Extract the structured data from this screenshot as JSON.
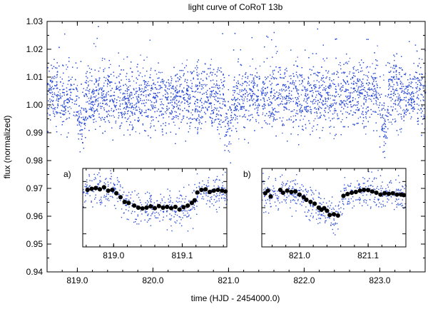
{
  "chart_data": {
    "type": "scatter",
    "title": "light curve of CoRoT 13b",
    "xlabel": "time (HJD - 2454000.0)",
    "ylabel": "flux (normalized)",
    "xlim": [
      818.6,
      823.6
    ],
    "ylim": [
      0.94,
      1.03
    ],
    "xticks": [
      "819.0",
      "820.0",
      "821.0",
      "822.0",
      "823.0"
    ],
    "yticks": [
      "0.94",
      "0.95",
      "0.96",
      "0.97",
      "0.98",
      "0.99",
      "1.00",
      "1.01",
      "1.02",
      "1.03"
    ],
    "baseline_flux": 1.003,
    "transit_depth": 0.01,
    "transit_centers": [
      819.05,
      821.0,
      823.05
    ],
    "main_series_color": "#2f4fd8",
    "binned_color": "#000000",
    "insets": [
      {
        "label": "a)",
        "xlim": [
          818.955,
          819.165
        ],
        "ylim": [
          0.945,
          0.975
        ],
        "xticks": [
          "819.0",
          "819.1"
        ],
        "binned": [
          [
            818.962,
            0.9668
          ],
          [
            818.968,
            0.9672
          ],
          [
            818.974,
            0.9675
          ],
          [
            818.98,
            0.967
          ],
          [
            818.986,
            0.9678
          ],
          [
            818.992,
            0.9665
          ],
          [
            818.998,
            0.9668
          ],
          [
            819.004,
            0.9655
          ],
          [
            819.01,
            0.964
          ],
          [
            819.016,
            0.9622
          ],
          [
            819.022,
            0.9618
          ],
          [
            819.03,
            0.9608
          ],
          [
            819.036,
            0.96
          ],
          [
            819.042,
            0.9597
          ],
          [
            819.048,
            0.96
          ],
          [
            819.054,
            0.9605
          ],
          [
            819.06,
            0.9598
          ],
          [
            819.066,
            0.9606
          ],
          [
            819.072,
            0.96
          ],
          [
            819.078,
            0.9603
          ],
          [
            819.084,
            0.9598
          ],
          [
            819.09,
            0.9603
          ],
          [
            819.096,
            0.9593
          ],
          [
            819.102,
            0.9602
          ],
          [
            819.108,
            0.9608
          ],
          [
            819.114,
            0.9618
          ],
          [
            819.118,
            0.9628
          ],
          [
            819.122,
            0.9658
          ],
          [
            819.128,
            0.9668
          ],
          [
            819.134,
            0.967
          ],
          [
            819.14,
            0.966
          ],
          [
            819.146,
            0.9665
          ],
          [
            819.152,
            0.9668
          ],
          [
            819.158,
            0.9665
          ],
          [
            819.163,
            0.9662
          ]
        ]
      },
      {
        "label": "b)",
        "xlim": [
          820.945,
          821.155
        ],
        "ylim": [
          0.945,
          0.975
        ],
        "xticks": [
          "821.0",
          "821.1"
        ],
        "binned": [
          [
            820.95,
            0.9655
          ],
          [
            820.954,
            0.9665
          ],
          [
            820.958,
            0.9643
          ],
          [
            820.972,
            0.9668
          ],
          [
            820.976,
            0.9657
          ],
          [
            820.982,
            0.9665
          ],
          [
            820.988,
            0.966
          ],
          [
            820.994,
            0.9662
          ],
          [
            821.0,
            0.965
          ],
          [
            821.006,
            0.964
          ],
          [
            821.01,
            0.963
          ],
          [
            821.016,
            0.9622
          ],
          [
            821.022,
            0.9615
          ],
          [
            821.028,
            0.96
          ],
          [
            821.032,
            0.9592
          ],
          [
            821.036,
            0.9598
          ],
          [
            821.04,
            0.9588
          ],
          [
            821.044,
            0.9572
          ],
          [
            821.05,
            0.9575
          ],
          [
            821.056,
            0.957
          ],
          [
            821.064,
            0.9645
          ],
          [
            821.07,
            0.9652
          ],
          [
            821.076,
            0.9657
          ],
          [
            821.082,
            0.966
          ],
          [
            821.088,
            0.9665
          ],
          [
            821.094,
            0.9668
          ],
          [
            821.1,
            0.9667
          ],
          [
            821.106,
            0.9662
          ],
          [
            821.112,
            0.9657
          ],
          [
            821.118,
            0.965
          ],
          [
            821.124,
            0.9655
          ],
          [
            821.13,
            0.9653
          ],
          [
            821.136,
            0.9655
          ],
          [
            821.142,
            0.965
          ],
          [
            821.148,
            0.965
          ],
          [
            821.152,
            0.9648
          ]
        ]
      }
    ]
  }
}
